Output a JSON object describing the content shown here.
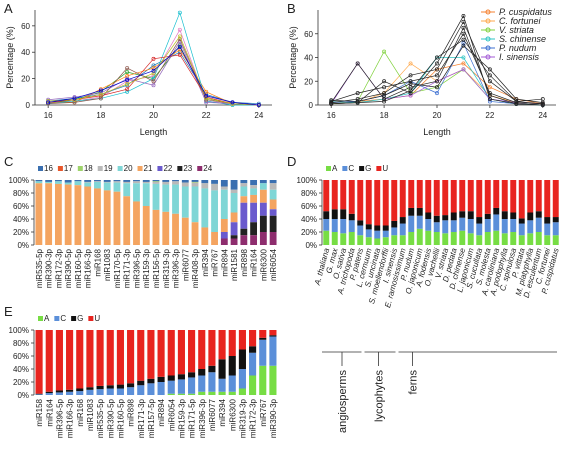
{
  "chart_data": [
    {
      "type": "line",
      "panel": "A",
      "xlabel": "Length",
      "ylabel": "Percentage (%)",
      "x": [
        16,
        17,
        18,
        19,
        20,
        21,
        22,
        23,
        24
      ],
      "xlim": [
        15.5,
        24.5
      ],
      "xticks": [
        16,
        18,
        20,
        22,
        24
      ],
      "ylim": [
        0,
        72
      ],
      "yticks": [
        0,
        20,
        40,
        60
      ],
      "series": [
        {
          "color": "#e377c2",
          "values": [
            2,
            3,
            6,
            18,
            22,
            57,
            3,
            1,
            0
          ]
        },
        {
          "color": "#2ca02c",
          "values": [
            1,
            4,
            10,
            25,
            20,
            45,
            5,
            1,
            0
          ]
        },
        {
          "color": "#1f77b4",
          "values": [
            3,
            5,
            8,
            15,
            30,
            40,
            8,
            2,
            1
          ]
        },
        {
          "color": "#ff7f0e",
          "values": [
            2,
            2,
            12,
            22,
            28,
            42,
            10,
            1,
            0
          ]
        },
        {
          "color": "#17becf",
          "values": [
            1,
            3,
            5,
            10,
            20,
            70,
            3,
            0,
            0
          ]
        },
        {
          "color": "#9467bd",
          "values": [
            4,
            6,
            9,
            20,
            15,
            48,
            2,
            1,
            0
          ]
        },
        {
          "color": "#d62728",
          "values": [
            2,
            4,
            7,
            12,
            35,
            38,
            6,
            1,
            0
          ]
        },
        {
          "color": "#8c564b",
          "values": [
            1,
            2,
            5,
            28,
            18,
            50,
            4,
            1,
            0
          ]
        },
        {
          "color": "#bcbd22",
          "values": [
            3,
            4,
            8,
            16,
            24,
            52,
            5,
            1,
            0
          ]
        },
        {
          "color": "#0000cc",
          "values": [
            2,
            5,
            11,
            19,
            26,
            44,
            7,
            2,
            0
          ]
        }
      ]
    },
    {
      "type": "line",
      "panel": "B",
      "xlabel": "Length",
      "ylabel": "Percentage (%)",
      "x": [
        16,
        17,
        18,
        19,
        20,
        21,
        22,
        23,
        24
      ],
      "xlim": [
        15.5,
        24.5
      ],
      "xticks": [
        16,
        18,
        20,
        22,
        24
      ],
      "ylim": [
        0,
        80
      ],
      "yticks": [
        0,
        20,
        40,
        60
      ],
      "legend": "top-right",
      "series": [
        {
          "name": "P. cuspidatus",
          "color": "#f58231",
          "values": [
            2,
            3,
            5,
            8,
            30,
            35,
            15,
            5,
            1
          ]
        },
        {
          "name": "C. fortunei",
          "color": "#ffa94d",
          "values": [
            1,
            2,
            10,
            35,
            20,
            30,
            8,
            2,
            1
          ]
        },
        {
          "name": "V. striata",
          "color": "#7fd13b",
          "values": [
            1,
            3,
            45,
            10,
            15,
            30,
            5,
            1,
            0
          ]
        },
        {
          "name": "S. chinense",
          "color": "#2ec4c4",
          "values": [
            3,
            2,
            5,
            10,
            40,
            40,
            5,
            1,
            0
          ]
        },
        {
          "name": "P. nudum",
          "color": "#3c6fd1",
          "values": [
            2,
            3,
            8,
            20,
            10,
            52,
            3,
            1,
            0
          ]
        },
        {
          "name": "I. sinensis",
          "color": "#a35bd6",
          "values": [
            1,
            35,
            5,
            8,
            20,
            30,
            5,
            2,
            1
          ]
        },
        {
          "color": "#222222",
          "values": [
            2,
            5,
            10,
            25,
            30,
            70,
            20,
            3,
            1
          ]
        },
        {
          "color": "#222222",
          "values": [
            3,
            10,
            15,
            20,
            25,
            60,
            10,
            2,
            1
          ]
        },
        {
          "color": "#222222",
          "values": [
            1,
            2,
            20,
            10,
            35,
            75,
            5,
            1,
            0
          ]
        },
        {
          "color": "#222222",
          "values": [
            2,
            35,
            5,
            15,
            20,
            65,
            8,
            1,
            0
          ]
        },
        {
          "color": "#222222",
          "values": [
            4,
            3,
            8,
            18,
            15,
            50,
            30,
            5,
            2
          ]
        },
        {
          "color": "#222222",
          "values": [
            1,
            2,
            3,
            12,
            40,
            55,
            25,
            3,
            5
          ]
        }
      ]
    },
    {
      "type": "stacked_bar",
      "panel": "C",
      "stack_from": "top",
      "label_rotation": -90,
      "italic_labels": false,
      "categories": [
        "miR535-5p",
        "miR390-3p",
        "miR172-3p",
        "miR390-5p",
        "miR160-5p",
        "miR166-3p",
        "miR168",
        "miR1083",
        "miR170-5p",
        "miR171-3p",
        "miR396-5p",
        "miR159-3p",
        "miR156-5p",
        "miR319-3p",
        "miR396-3p",
        "miR6077",
        "miR408-3p",
        "miR394",
        "miR767",
        "miR894",
        "miR1581",
        "miR898",
        "miR164",
        "miR6300",
        "miR6054"
      ],
      "ylim": [
        0,
        100
      ],
      "yticks": [
        {
          "value": 0,
          "label": "0%"
        },
        {
          "value": 20,
          "label": "20%"
        },
        {
          "value": 40,
          "label": "40%"
        },
        {
          "value": 60,
          "label": "60%"
        },
        {
          "value": 80,
          "label": "80%"
        },
        {
          "value": 100,
          "label": "100%"
        }
      ],
      "series": [
        {
          "name": "16",
          "color": "#3a6fb0",
          "values": [
            2,
            3,
            2,
            4,
            2,
            3,
            2,
            3,
            2,
            3,
            2,
            3,
            2,
            3,
            2,
            4,
            3,
            5,
            6,
            10,
            15,
            5,
            8,
            5,
            5
          ]
        },
        {
          "name": "17",
          "color": "#e8562a",
          "values": [
            0,
            0,
            0,
            0,
            0,
            0,
            0,
            0,
            0,
            0,
            0,
            0,
            0,
            0,
            0,
            0,
            0,
            0,
            0,
            0,
            0,
            0,
            0,
            0,
            0
          ]
        },
        {
          "name": "18",
          "color": "#9ed36a",
          "values": [
            0,
            0,
            0,
            0,
            0,
            0,
            0,
            0,
            0,
            0,
            0,
            0,
            1,
            0,
            0,
            0,
            1,
            0,
            0,
            0,
            0,
            0,
            0,
            0,
            0
          ]
        },
        {
          "name": "19",
          "color": "#b9b9b9",
          "values": [
            0,
            0,
            0,
            0,
            0,
            1,
            1,
            1,
            2,
            2,
            3,
            2,
            3,
            4,
            5,
            6,
            6,
            8,
            10,
            5,
            5,
            5,
            5,
            0,
            10
          ]
        },
        {
          "name": "20",
          "color": "#7fd6d6",
          "values": [
            3,
            2,
            4,
            3,
            6,
            6,
            10,
            12,
            14,
            20,
            28,
            35,
            40,
            42,
            45,
            48,
            55,
            60,
            64,
            45,
            30,
            15,
            10,
            10,
            15
          ]
        },
        {
          "name": "21",
          "color": "#f4a460",
          "values": [
            95,
            95,
            94,
            93,
            92,
            90,
            87,
            84,
            82,
            75,
            67,
            60,
            54,
            51,
            48,
            42,
            35,
            27,
            20,
            20,
            15,
            10,
            12,
            20,
            15
          ]
        },
        {
          "name": "22",
          "color": "#6a5acd",
          "values": [
            0,
            0,
            0,
            0,
            0,
            0,
            0,
            0,
            0,
            0,
            0,
            0,
            0,
            0,
            0,
            0,
            0,
            0,
            0,
            10,
            20,
            40,
            30,
            20,
            10
          ]
        },
        {
          "name": "23",
          "color": "#222222",
          "values": [
            0,
            0,
            0,
            0,
            0,
            0,
            0,
            0,
            0,
            0,
            0,
            0,
            0,
            0,
            0,
            0,
            0,
            0,
            0,
            0,
            5,
            10,
            20,
            25,
            25
          ]
        },
        {
          "name": "24",
          "color": "#8e2d6e",
          "values": [
            0,
            0,
            0,
            0,
            0,
            0,
            0,
            0,
            0,
            0,
            0,
            0,
            0,
            0,
            0,
            0,
            0,
            0,
            0,
            10,
            10,
            15,
            15,
            20,
            20
          ]
        }
      ]
    },
    {
      "type": "stacked_bar",
      "panel": "D",
      "stack_from": "bottom",
      "label_rotation": -75,
      "italic_labels": true,
      "categories": [
        "A. thaliana",
        "G. max",
        "O. sativa",
        "A. trichopoda",
        "P. patens",
        "L. cernuum",
        "S. uncinata",
        "S. moellendorffii",
        "I. sinensis",
        "E. ramosissimum",
        "P. nudum",
        "O. japonicum",
        "A. fodensis",
        "O. vachellii",
        "V. striata",
        "D. pedata",
        "D. chinense",
        "L. japonicum",
        "S. cucullata",
        "S. molesta",
        "A. caroliniana",
        "A. podophylla",
        "C. spinulosa",
        "P. vittata",
        "M. platyphylla",
        "D. esculentum",
        "C. fortunei",
        "P. cuspidatus"
      ],
      "groups": [
        {
          "label": "angiosperms",
          "size": 5
        },
        {
          "label": "lycophytes",
          "size": 4
        },
        {
          "label": "ferns",
          "size": 19
        }
      ],
      "ylim": [
        0,
        100
      ],
      "yticks": [
        {
          "value": 0,
          "label": "0%"
        },
        {
          "value": 20,
          "label": "20%"
        },
        {
          "value": 40,
          "label": "40%"
        },
        {
          "value": 60,
          "label": "60%"
        },
        {
          "value": 80,
          "label": "80%"
        },
        {
          "value": 100,
          "label": "100%"
        }
      ],
      "series": [
        {
          "name": "A",
          "color": "#77dd44",
          "values": [
            22,
            20,
            18,
            20,
            15,
            12,
            10,
            12,
            15,
            15,
            20,
            25,
            22,
            20,
            18,
            20,
            22,
            18,
            15,
            20,
            22,
            18,
            20,
            15,
            18,
            20,
            15,
            15
          ]
        },
        {
          "name": "C",
          "color": "#5b8fd9",
          "values": [
            18,
            20,
            22,
            18,
            15,
            12,
            12,
            10,
            12,
            18,
            25,
            20,
            18,
            15,
            20,
            18,
            20,
            22,
            18,
            20,
            25,
            22,
            20,
            18,
            20,
            22,
            18,
            20
          ]
        },
        {
          "name": "G",
          "color": "#111111",
          "values": [
            12,
            15,
            15,
            10,
            8,
            8,
            8,
            8,
            10,
            10,
            12,
            12,
            10,
            10,
            8,
            12,
            10,
            12,
            10,
            8,
            10,
            12,
            10,
            8,
            12,
            10,
            10,
            8
          ]
        },
        {
          "name": "U",
          "color": "#e8241f",
          "values": [
            48,
            45,
            45,
            52,
            62,
            68,
            70,
            70,
            63,
            57,
            43,
            43,
            50,
            55,
            54,
            50,
            48,
            48,
            57,
            52,
            43,
            48,
            50,
            59,
            50,
            48,
            57,
            57
          ]
        }
      ]
    },
    {
      "type": "stacked_bar",
      "panel": "E",
      "stack_from": "bottom",
      "label_rotation": -90,
      "italic_labels": false,
      "categories": [
        "miR158",
        "miR164",
        "miR396-5p",
        "miR166-3p",
        "miR168",
        "miR1083",
        "miR535-5p",
        "miR390-5p",
        "miR160-5p",
        "miR898",
        "miR171-3p",
        "miR157-5p",
        "miR894",
        "miR6054",
        "miR159-3p",
        "miR171-5p",
        "miR396-3p",
        "miR6077",
        "miR394",
        "miR6300",
        "miR319-3p",
        "miR172-3p",
        "miR767",
        "miR390-3p"
      ],
      "ylim": [
        0,
        100
      ],
      "yticks": [
        {
          "value": 0,
          "label": "0%"
        },
        {
          "value": 20,
          "label": "20%"
        },
        {
          "value": 40,
          "label": "40%"
        },
        {
          "value": 60,
          "label": "60%"
        },
        {
          "value": 80,
          "label": "80%"
        },
        {
          "value": 100,
          "label": "100%"
        }
      ],
      "series": [
        {
          "name": "A",
          "color": "#77dd44",
          "values": [
            0,
            0,
            0,
            0,
            0,
            0,
            0,
            0,
            0,
            0,
            0,
            0,
            0,
            2,
            2,
            2,
            5,
            5,
            5,
            5,
            10,
            30,
            45,
            45
          ]
        },
        {
          "name": "C",
          "color": "#5b8fd9",
          "values": [
            1,
            3,
            4,
            5,
            6,
            8,
            9,
            10,
            10,
            12,
            15,
            18,
            20,
            20,
            22,
            25,
            25,
            30,
            20,
            25,
            30,
            35,
            40,
            45
          ]
        },
        {
          "name": "G",
          "color": "#111111",
          "values": [
            1,
            2,
            3,
            3,
            4,
            4,
            5,
            5,
            6,
            6,
            7,
            7,
            8,
            8,
            8,
            8,
            10,
            10,
            30,
            30,
            30,
            10,
            3,
            2
          ]
        },
        {
          "name": "U",
          "color": "#e8241f",
          "values": [
            98,
            95,
            93,
            92,
            90,
            88,
            86,
            85,
            84,
            82,
            78,
            75,
            72,
            70,
            68,
            65,
            60,
            55,
            45,
            40,
            30,
            25,
            12,
            8
          ]
        }
      ]
    }
  ]
}
